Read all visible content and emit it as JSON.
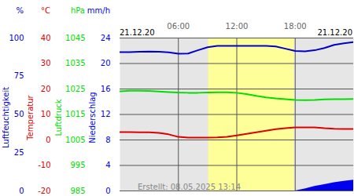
{
  "chart_data": {
    "type": "line",
    "dates": [
      "21.12.20",
      "21.12.20"
    ],
    "caption": "Erstellt: 08.05.2025 13:14",
    "x": [
      0,
      1,
      2,
      3,
      4,
      5,
      6,
      7,
      8,
      9,
      10,
      11,
      12,
      13,
      14,
      15,
      16,
      17,
      18,
      19,
      20,
      21,
      22,
      23,
      24
    ],
    "xlim": [
      0,
      24
    ],
    "xticks": [
      {
        "value": 6,
        "label": "06:00"
      },
      {
        "value": 12,
        "label": "12:00"
      },
      {
        "value": 18,
        "label": "18:00"
      }
    ],
    "daylight": [
      9.1,
      17.9
    ],
    "grid": true,
    "series": [
      {
        "name": "Niederschlag",
        "unit": "mm/h",
        "axis": "y4",
        "type": "area",
        "color": "#0000ee",
        "ylim": [
          0,
          24
        ],
        "yticks": [
          0,
          4,
          8,
          12,
          16,
          20,
          24
        ],
        "values": [
          0,
          0,
          0,
          0,
          0,
          0,
          0,
          0,
          0,
          0,
          0,
          0,
          0,
          0,
          0,
          0,
          0,
          0,
          0,
          0.3,
          0.7,
          1.0,
          1.3,
          1.5,
          1.7
        ]
      },
      {
        "name": "Luftfeuchtigkeit",
        "unit": "%",
        "axis": "y1",
        "type": "line",
        "color": "#0000cc",
        "ylim": [
          0,
          100
        ],
        "yticks": [
          0,
          25,
          50,
          75,
          100
        ],
        "values": [
          90.8,
          90.8,
          91,
          91.2,
          91,
          90.6,
          89.7,
          89.9,
          92,
          94,
          94.9,
          94.9,
          94.9,
          94.9,
          94.9,
          94.9,
          94.5,
          93,
          91.5,
          91.3,
          92,
          93.5,
          95.5,
          96.5,
          97.4
        ]
      },
      {
        "name": "Temperatur",
        "unit": "°C",
        "axis": "y",
        "type": "line",
        "color": "#dd0000",
        "ylim": [
          -20,
          40
        ],
        "yticks": [
          -20,
          -10,
          0,
          10,
          20,
          30,
          40
        ],
        "values": [
          3.1,
          3.1,
          3.0,
          3.0,
          2.8,
          2.2,
          1.2,
          0.9,
          0.9,
          0.9,
          1.0,
          1.2,
          1.8,
          2.4,
          3.0,
          3.6,
          4.2,
          4.6,
          4.9,
          4.9,
          4.9,
          4.6,
          4.4,
          4.3,
          4.3
        ]
      },
      {
        "name": "Luftdruck",
        "unit": "hPa",
        "axis": "y3",
        "type": "line",
        "color": "#00dd00",
        "ylim": [
          985,
          1045
        ],
        "yticks": [
          985,
          995,
          1005,
          1015,
          1025,
          1035,
          1045
        ],
        "values": [
          1024.1,
          1024.3,
          1024.3,
          1024.2,
          1024.0,
          1023.8,
          1023.6,
          1023.5,
          1023.5,
          1023.6,
          1023.7,
          1023.7,
          1023.5,
          1023.0,
          1022.3,
          1021.7,
          1021.3,
          1021.0,
          1020.7,
          1020.6,
          1020.7,
          1020.9,
          1021.0,
          1021.0,
          1021.1
        ]
      }
    ]
  }
}
